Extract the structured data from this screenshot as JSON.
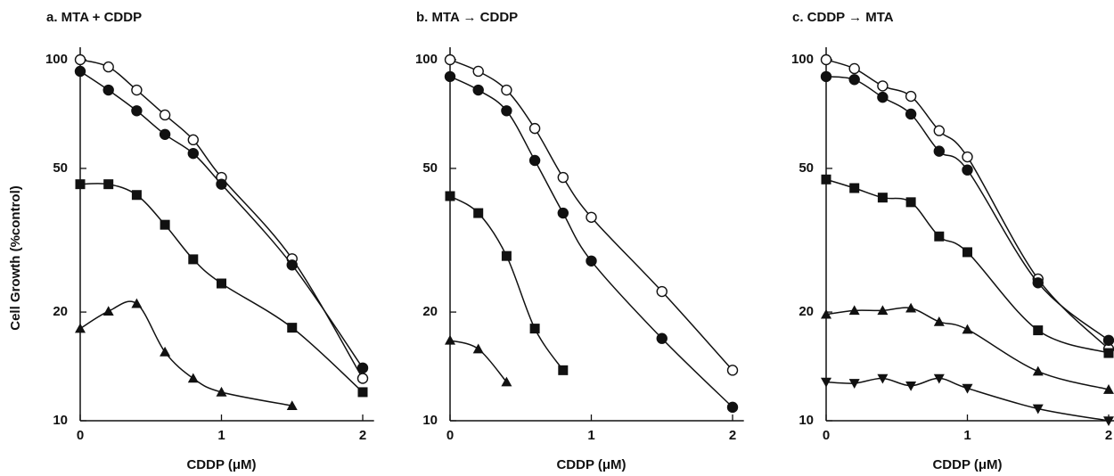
{
  "chart_data": [
    {
      "type": "line",
      "title": "a. MTA  + CDDP",
      "xlabel": "CDDP (μM)",
      "ylabel": "Cell Growth (%control)",
      "log_y": true,
      "xlim": [
        0,
        2.08
      ],
      "ylim": [
        10,
        100
      ],
      "xticks": [
        0,
        1,
        2
      ],
      "yticks": [
        10,
        20,
        50,
        100
      ],
      "x": [
        0,
        0.2,
        0.4,
        0.6,
        0.8,
        1,
        1.5,
        2
      ],
      "series": [
        {
          "marker": "circle-open",
          "color": "#111111",
          "values": [
            100,
            95.5,
            82.4,
            70.3,
            60,
            47.2,
            28.1,
            13.1
          ]
        },
        {
          "marker": "circle",
          "color": "#111111",
          "values": [
            92.9,
            82.4,
            72.2,
            62.1,
            55,
            45.2,
            27,
            14
          ]
        },
        {
          "marker": "square",
          "color": "#111111",
          "values": [
            45.2,
            45.2,
            42.2,
            34.9,
            28,
            24,
            18.1,
            12
          ]
        },
        {
          "marker": "triangle-up",
          "color": "#111111",
          "values": [
            18,
            20.1,
            21.1,
            15.5,
            13.1,
            12,
            11,
            null
          ]
        }
      ]
    },
    {
      "type": "line",
      "title": "b. MTA → CDDP",
      "xlabel": "CDDP (μM)",
      "log_y": true,
      "xlim": [
        0,
        2.08
      ],
      "ylim": [
        10,
        100
      ],
      "xticks": [
        0,
        1,
        2
      ],
      "yticks": [
        10,
        20,
        50,
        100
      ],
      "x": [
        0,
        0.2,
        0.4,
        0.6,
        0.8,
        1,
        1.5,
        2
      ],
      "series": [
        {
          "marker": "circle-open",
          "color": "#111111",
          "values": [
            100,
            92.9,
            82.4,
            64.5,
            47.2,
            36.6,
            22.8,
            13.8
          ]
        },
        {
          "marker": "circle",
          "color": "#111111",
          "values": [
            89.8,
            82.4,
            72.2,
            52.6,
            37.6,
            27.7,
            16.9,
            10.9
          ]
        },
        {
          "marker": "square",
          "color": "#111111",
          "values": [
            41.9,
            37.6,
            28.6,
            18,
            13.8,
            null,
            null,
            null
          ]
        },
        {
          "marker": "triangle-up",
          "color": "#111111",
          "values": [
            16.7,
            15.8,
            12.8,
            null,
            null,
            null,
            null,
            null
          ]
        }
      ]
    },
    {
      "type": "line",
      "title": "c. CDDP → MTA",
      "xlabel": "CDDP (μM)",
      "log_y": true,
      "xlim": [
        0,
        2.08
      ],
      "ylim": [
        10,
        100
      ],
      "xticks": [
        0,
        1,
        2
      ],
      "yticks": [
        10,
        20,
        50,
        100
      ],
      "x": [
        0,
        0.2,
        0.4,
        0.6,
        0.8,
        1,
        1.5,
        2
      ],
      "series": [
        {
          "marker": "circle-open",
          "color": "#111111",
          "values": [
            100,
            94.5,
            84.6,
            79.2,
            63.6,
            53.8,
            24.7,
            15.8
          ]
        },
        {
          "marker": "circle",
          "color": "#111111",
          "values": [
            89.8,
            88.1,
            78.7,
            70.7,
            55.8,
            49.5,
            24.1,
            16.7
          ]
        },
        {
          "marker": "square",
          "color": "#111111",
          "values": [
            46.6,
            44.1,
            41.5,
            40.3,
            32.4,
            29.3,
            17.8,
            15.4
          ]
        },
        {
          "marker": "triangle-up",
          "color": "#111111",
          "values": [
            19.7,
            20.2,
            20.2,
            20.5,
            18.8,
            17.9,
            13.7,
            12.2
          ]
        },
        {
          "marker": "triangle-down",
          "color": "#111111",
          "values": [
            12.8,
            12.7,
            13.1,
            12.5,
            13.1,
            12.3,
            10.8,
            10
          ]
        }
      ]
    }
  ]
}
